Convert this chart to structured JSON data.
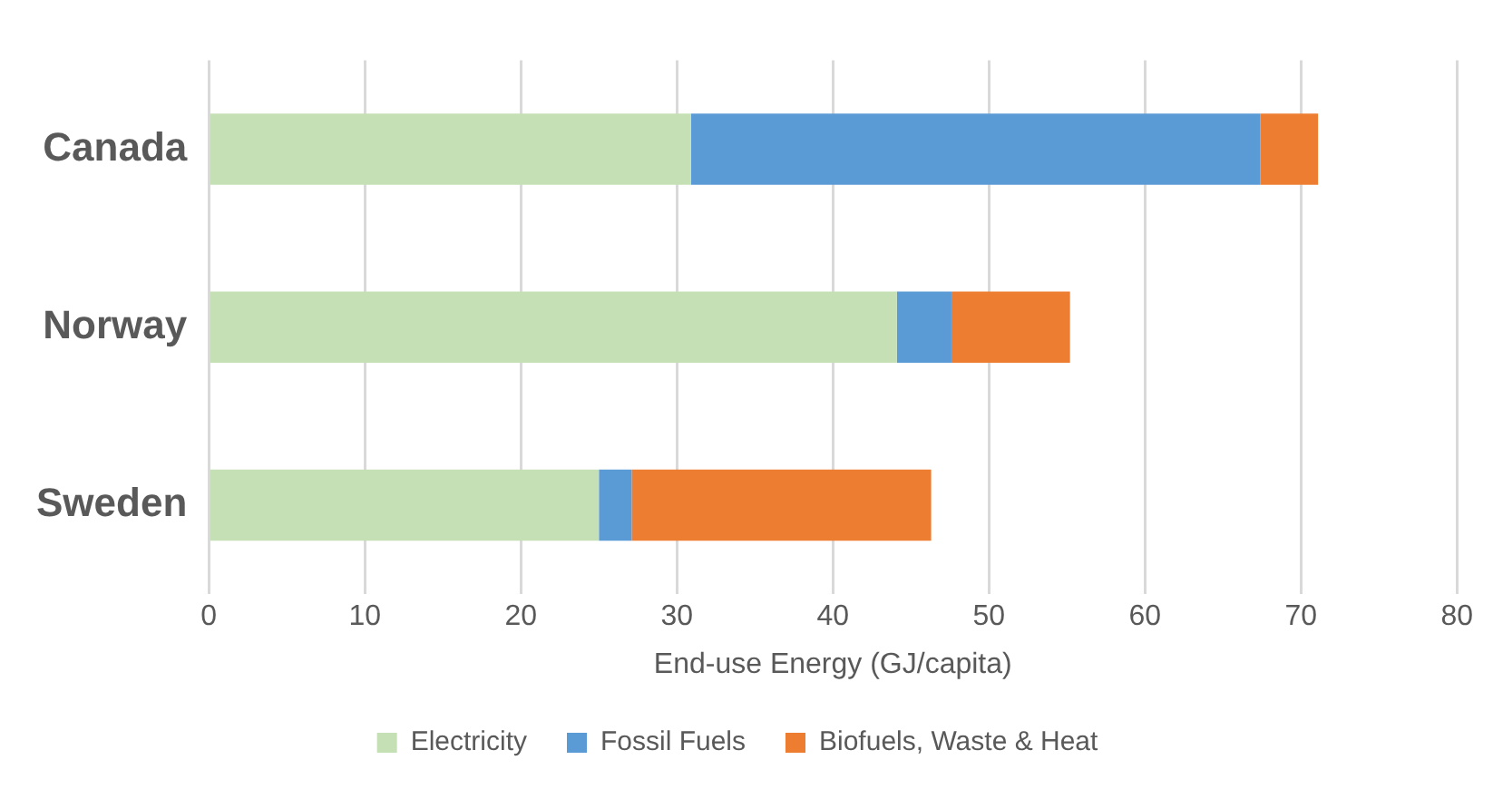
{
  "chart_data": {
    "type": "bar",
    "orientation": "horizontal",
    "stacked": true,
    "xlabel": "End-use Energy (GJ/capita)",
    "categories": [
      "Canada",
      "Norway",
      "Sweden"
    ],
    "series": [
      {
        "name": "Electricity",
        "color": "#c5e0b4",
        "values": [
          30.9,
          44.1,
          25.0
        ]
      },
      {
        "name": "Fossil Fuels",
        "color": "#5b9bd5",
        "values": [
          36.5,
          3.5,
          2.1
        ]
      },
      {
        "name": "Biofuels, Waste & Heat",
        "color": "#ed7d31",
        "values": [
          3.7,
          7.6,
          19.2
        ]
      }
    ],
    "xlim": [
      0,
      80
    ],
    "xticks": [
      0,
      10,
      20,
      30,
      40,
      50,
      60,
      70,
      80
    ],
    "grid": "x",
    "legend": "bottom"
  }
}
